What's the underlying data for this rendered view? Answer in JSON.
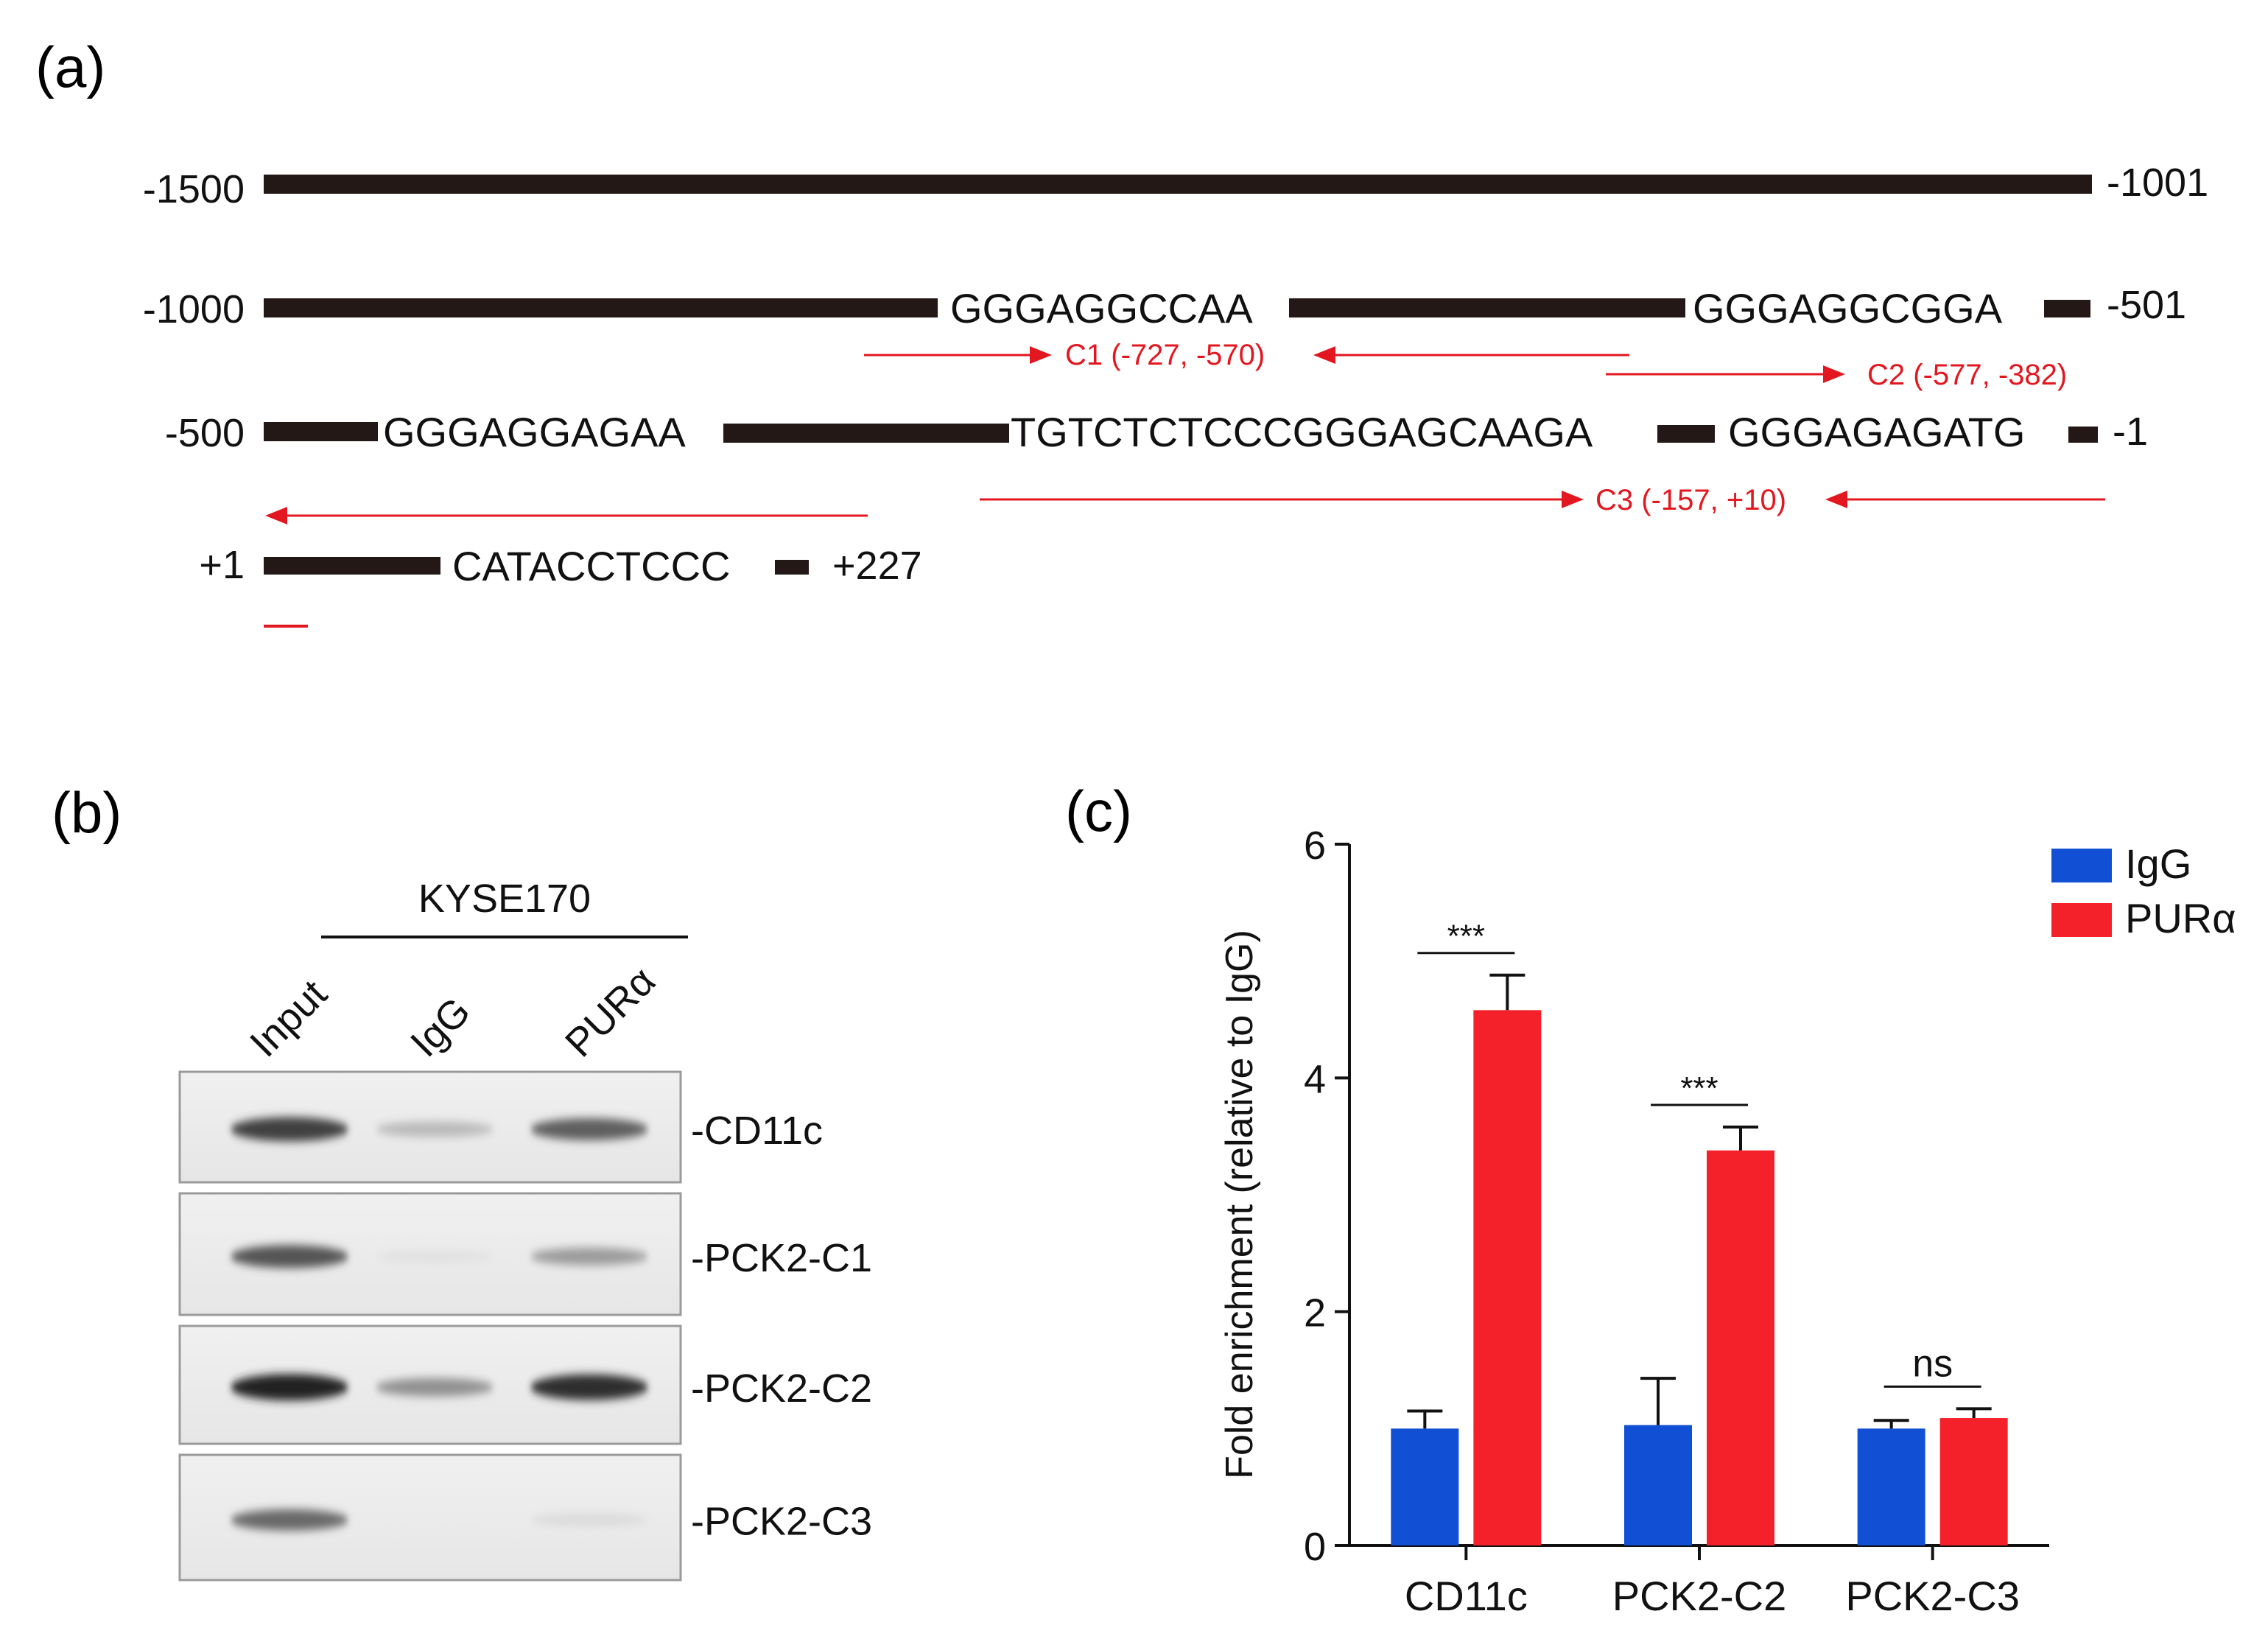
{
  "panel_a": {
    "label": "(a)",
    "rows": [
      {
        "left": "-1500",
        "right": "-1001",
        "segments": []
      },
      {
        "left": "-1000",
        "right": "-501",
        "segments": [
          "GGGAGGCCAA",
          "GGGAGGCGGA"
        ]
      },
      {
        "left": "-500",
        "right": "-1",
        "segments": [
          "GGGAGGAGAA",
          "TGTCTCTCCCGGGAGCAAGA",
          "GGGAGAGATG"
        ]
      },
      {
        "left": "+1",
        "right": "+227",
        "segments": [
          "CATACCTCCC"
        ]
      }
    ],
    "amplicons": [
      {
        "label": "C1 (-727, -570)"
      },
      {
        "label": "C2 (-577, -382)"
      },
      {
        "label": "C3 (-157, +10)"
      }
    ]
  },
  "panel_b": {
    "label": "(b)",
    "cell_line": "KYSE170",
    "lanes": [
      "Input",
      "IgG",
      "PURα"
    ],
    "bands": [
      {
        "label": "-CD11c",
        "intensity": [
          0.85,
          0.25,
          0.7
        ]
      },
      {
        "label": "-PCK2-C1",
        "intensity": [
          0.75,
          0.05,
          0.4
        ]
      },
      {
        "label": "-PCK2-C2",
        "intensity": [
          1.0,
          0.45,
          0.95
        ]
      },
      {
        "label": "-PCK2-C3",
        "intensity": [
          0.65,
          0.02,
          0.08
        ]
      }
    ]
  },
  "chart_data": {
    "panel_label": "(c)",
    "type": "bar",
    "categories": [
      "CD11c",
      "PCK2-C2",
      "PCK2-C3"
    ],
    "series": [
      {
        "name": "IgG",
        "color": "#1150d4",
        "values": [
          1.0,
          1.03,
          1.0
        ],
        "errors": [
          0.15,
          0.4,
          0.07
        ]
      },
      {
        "name": "PURα",
        "color": "#f5212a",
        "values": [
          4.58,
          3.38,
          1.09
        ],
        "errors": [
          0.3,
          0.2,
          0.08
        ]
      }
    ],
    "ylabel": "Fold enrichment (relative to IgG)",
    "xlabel": "",
    "ylim": [
      0,
      6
    ],
    "yticks": [
      0,
      2,
      4,
      6
    ],
    "significance": [
      "***",
      "***",
      "ns"
    ],
    "legend_position": "top-right"
  }
}
